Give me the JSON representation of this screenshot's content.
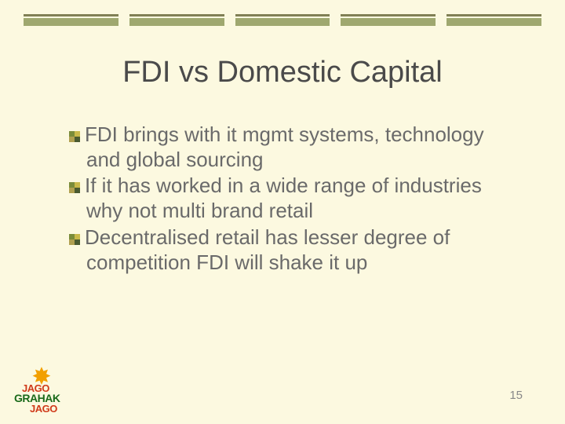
{
  "slide": {
    "title": "FDI vs Domestic Capital",
    "bullets": [
      "FDI brings with it mgmt systems, technology and global sourcing",
      "If it has worked in a wide range of industries why not multi brand retail",
      "Decentralised retail has lesser degree of competition  FDI will shake it up"
    ],
    "page_number": "15"
  },
  "logo": {
    "line1": "JAGO",
    "line2": "GRAHAK",
    "line3": "JAGO"
  },
  "styling": {
    "background_color": "#fcf9e0",
    "title_color": "#4a4a4a",
    "title_fontsize": 38,
    "body_color": "#6a6a6a",
    "body_fontsize": 26,
    "bar_thin_color": "#808055",
    "bar_thick_color": "#9fa86f",
    "bar_segments": 5,
    "bullet_colors": [
      "#7a8c3a",
      "#c9b94a",
      "#b0a050",
      "#4a5a30"
    ],
    "logo_sun_color": "#f2a000",
    "logo_red": "#d03a1a",
    "logo_green": "#1a6a1a",
    "page_num_color": "#888"
  }
}
